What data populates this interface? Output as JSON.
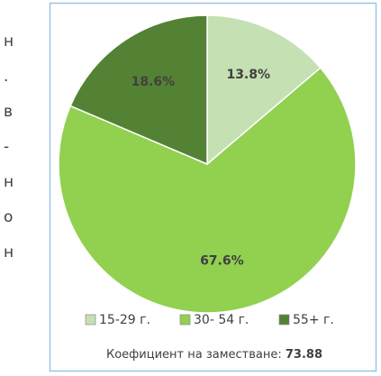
{
  "side_text": [
    "н",
    ".",
    "в",
    "-",
    "н",
    "о",
    "н"
  ],
  "chart_data": {
    "type": "pie",
    "categories": [
      "15-29 г.",
      "30- 54 г.",
      "55+ г."
    ],
    "values": [
      13.8,
      67.6,
      18.6
    ],
    "value_labels": [
      "13.8%",
      "67.6%",
      "18.6%"
    ],
    "colors": [
      "#c5e0b3",
      "#92d050",
      "#548235"
    ],
    "label_colors": [
      "#404040",
      "#404040",
      "#ffffff"
    ],
    "legend": "bottom"
  },
  "footer": {
    "label": "Коефициент на заместване:",
    "value": "73.88"
  }
}
